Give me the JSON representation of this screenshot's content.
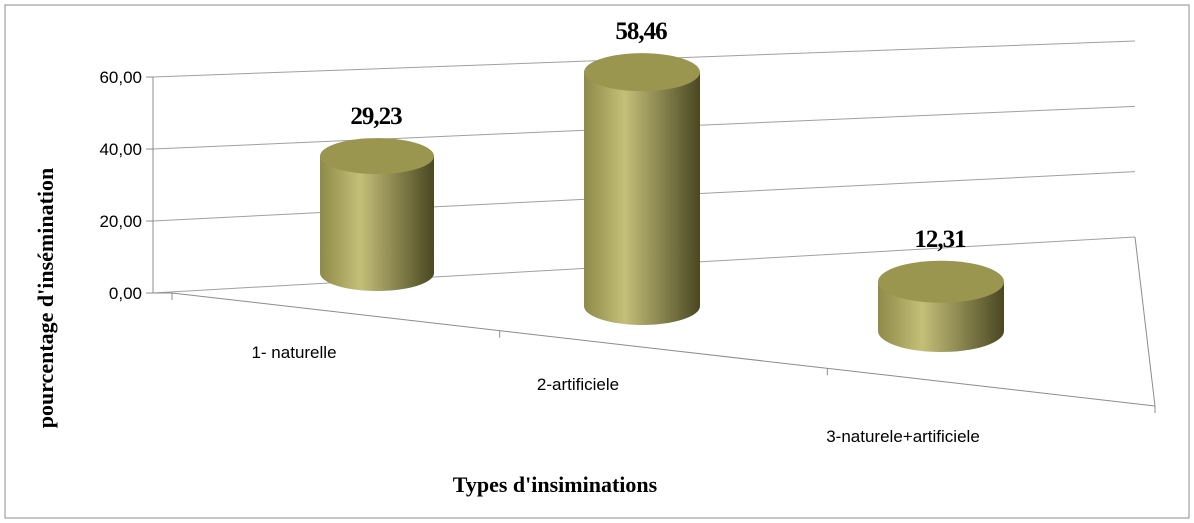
{
  "chart_data": {
    "type": "bar",
    "bar_shape": "cylinder-3d",
    "categories": [
      "1- naturelle",
      "2-artificiele",
      "3-naturele+artificiele"
    ],
    "values": [
      29.23,
      58.46,
      12.31
    ],
    "data_labels": [
      "29,23",
      "58,46",
      "12,31"
    ],
    "yticks": [
      "0,00",
      "20,00",
      "40,00",
      "60,00"
    ],
    "ylim": [
      0,
      60
    ],
    "xlabel": "Types d'insiminations",
    "ylabel": "pourcentage d'insémination",
    "grid": true,
    "legend": "none",
    "colors": {
      "bar_light": "#c4bf78",
      "bar_mid": "#8e8a48",
      "bar_dark": "#4a4722",
      "bar_top": "#9a954f",
      "grid": "#a0a0a0",
      "frame": "#8c8c8c"
    }
  }
}
